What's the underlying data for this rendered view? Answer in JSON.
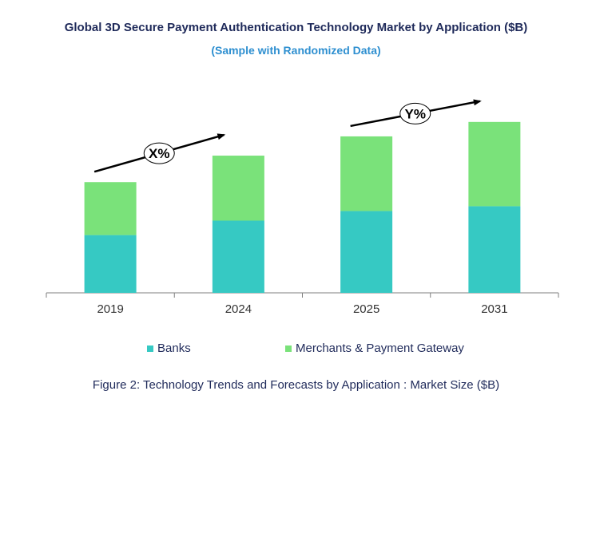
{
  "title": "Global 3D Secure Payment Authentication  Technology Market by Application ($B)",
  "subtitle": "(Sample with Randomized Data)",
  "caption": "Figure 2: Technology  Trends  and Forecasts by Application : Market Size ($B)",
  "annotations": [
    {
      "label": "X%"
    },
    {
      "label": "Y%"
    }
  ],
  "colors": {
    "banks": "#36c9c3",
    "merchants": "#7ae27a",
    "title": "#1f2a5a",
    "subtitle": "#2e8fd0",
    "axis": "#7f7f7f"
  },
  "chart_data": {
    "type": "bar",
    "stacked": true,
    "categories": [
      "2019",
      "2024",
      "2025",
      "2031"
    ],
    "series": [
      {
        "name": "Banks",
        "values": [
          2.4,
          3.0,
          3.4,
          3.6
        ]
      },
      {
        "name": "Merchants & Payment Gateway",
        "values": [
          2.2,
          2.7,
          3.1,
          3.5
        ]
      }
    ],
    "ylim": [
      0,
      12
    ],
    "grid": false,
    "legend_position": "bottom",
    "xlabel": "",
    "ylabel": ""
  }
}
